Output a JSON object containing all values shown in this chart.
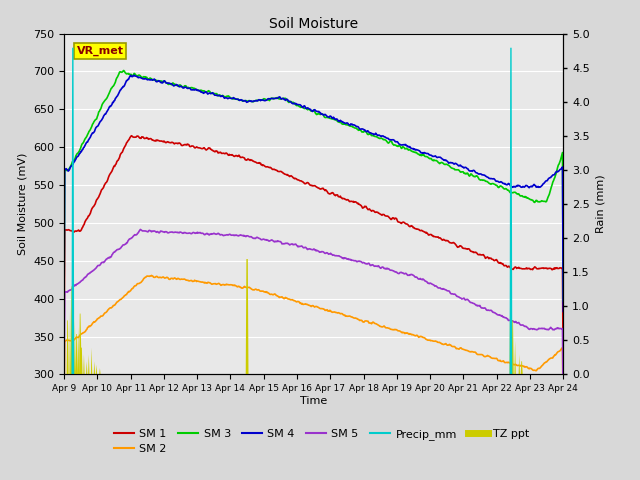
{
  "title": "Soil Moisture",
  "xlabel": "Time",
  "ylabel_left": "Soil Moisture (mV)",
  "ylabel_right": "Rain (mm)",
  "ylim_left": [
    300,
    750
  ],
  "ylim_right": [
    0.0,
    5.0
  ],
  "yticks_left": [
    300,
    350,
    400,
    450,
    500,
    550,
    600,
    650,
    700,
    750
  ],
  "yticks_right": [
    0.0,
    0.5,
    1.0,
    1.5,
    2.0,
    2.5,
    3.0,
    3.5,
    4.0,
    4.5,
    5.0
  ],
  "xtick_labels": [
    "Apr 9",
    "Apr 10",
    "Apr 11",
    "Apr 12",
    "Apr 13",
    "Apr 14",
    "Apr 15",
    "Apr 16",
    "Apr 17",
    "Apr 18",
    "Apr 19",
    "Apr 20",
    "Apr 21",
    "Apr 22",
    "Apr 23",
    "Apr 24"
  ],
  "colors": {
    "SM1": "#cc0000",
    "SM2": "#ff9900",
    "SM3": "#00cc00",
    "SM4": "#0000cc",
    "SM5": "#9933cc",
    "Precip": "#00cccc",
    "TZ_ppt": "#cccc00"
  },
  "bg_color": "#d8d8d8",
  "plot_bg": "#e8e8e8",
  "label_box_color": "#ffff00",
  "label_box_edgecolor": "#999900",
  "label_box_text": "VR_met",
  "label_text_color": "#880000"
}
